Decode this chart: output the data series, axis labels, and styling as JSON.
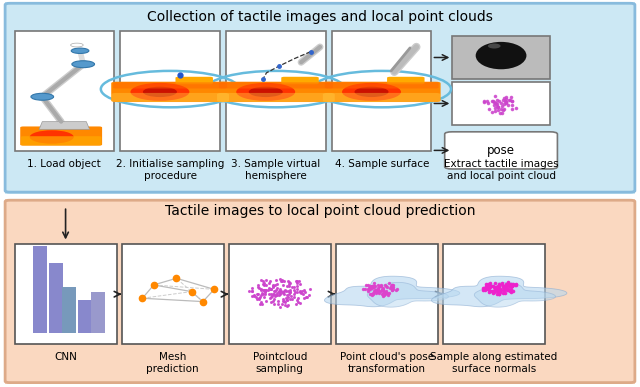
{
  "top_panel_bg": "#cce8f4",
  "bottom_panel_bg": "#fad8c0",
  "top_title": "Collection of tactile images and local point clouds",
  "bottom_title": "Tactile images to local point cloud prediction",
  "top_labels": [
    "1. Load object",
    "2. Initialise sampling\nprocedure",
    "3. Sample virtual\nhemisphere",
    "4. Sample surface",
    "Extract tactile images\nand local point cloud"
  ],
  "bottom_labels": [
    "CNN",
    "Mesh\nprediction",
    "Pointcloud\nsampling",
    "Point cloud's pose\ntransformation",
    "Sample along estimated\nsurface normals"
  ],
  "title_fontsize": 10,
  "label_fontsize": 7.5,
  "top_panel_border": "#88bbdd",
  "bottom_panel_border": "#ddaa88",
  "arrow_color": "#222222"
}
